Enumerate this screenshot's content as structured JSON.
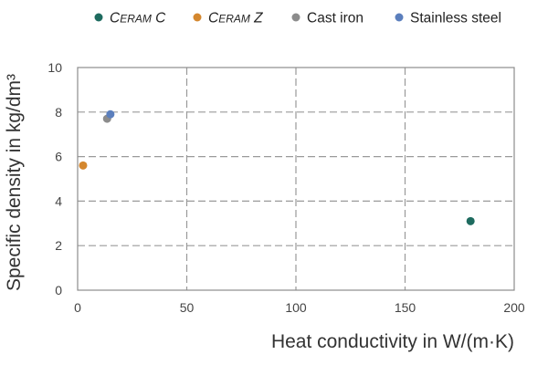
{
  "chart_data": {
    "type": "scatter",
    "title": "",
    "xlabel": "Heat conductivity in W/(m·K)",
    "ylabel": "Specific density in kg/dm³",
    "xlim": [
      0,
      200
    ],
    "ylim": [
      0,
      10
    ],
    "x_ticks": [
      "0",
      "50",
      "100",
      "150",
      "200"
    ],
    "y_ticks": [
      "0",
      "2",
      "4",
      "6",
      "8",
      "10"
    ],
    "grid": true,
    "legend_position": "top",
    "series": [
      {
        "name": "Ceram C",
        "color": "#1e6b5f",
        "points": [
          {
            "x": 180,
            "y": 3.1
          }
        ]
      },
      {
        "name": "Ceram Z",
        "color": "#d4872e",
        "points": [
          {
            "x": 2.5,
            "y": 5.6
          }
        ]
      },
      {
        "name": "Cast iron",
        "color": "#8c8c8c",
        "points": [
          {
            "x": 13.5,
            "y": 7.7
          }
        ]
      },
      {
        "name": "Stainless steel",
        "color": "#5b7fbd",
        "points": [
          {
            "x": 15,
            "y": 7.9
          }
        ]
      }
    ]
  }
}
